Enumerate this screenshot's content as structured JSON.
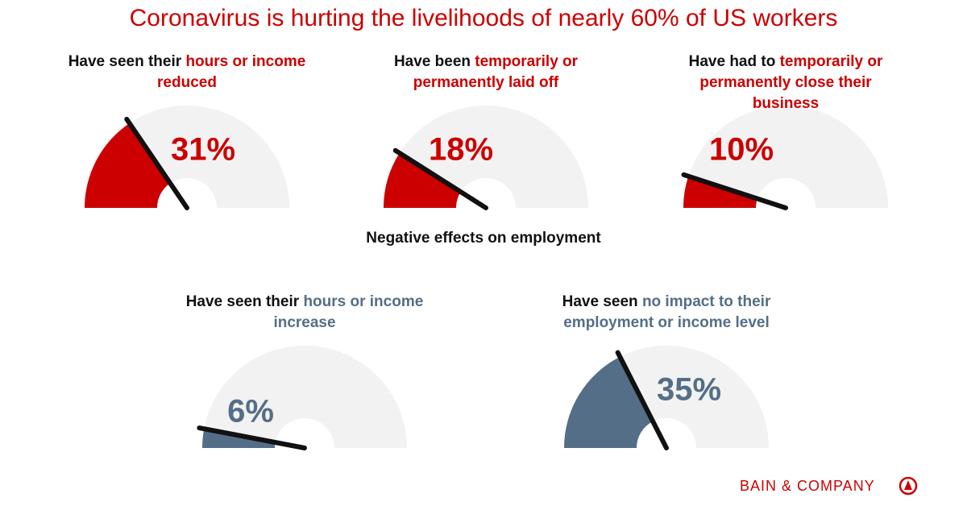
{
  "title": "Coronavirus is hurting the livelihoods of nearly 60% of US workers",
  "section_label": "Negative effects on employment",
  "brand": "BAIN & COMPANY",
  "chart_data": [
    {
      "type": "gauge",
      "label": "Have seen their",
      "label_highlight": "hours or income reduced",
      "value": 31,
      "value_label": "31%",
      "color": "#cc0000",
      "ylim": [
        0,
        100
      ]
    },
    {
      "type": "gauge",
      "label": "Have been",
      "label_highlight": "temporarily or permanently laid off",
      "value": 18,
      "value_label": "18%",
      "color": "#cc0000",
      "ylim": [
        0,
        100
      ]
    },
    {
      "type": "gauge",
      "label": "Have had to",
      "label_highlight": "temporarily or permanently close their business",
      "value": 10,
      "value_label": "10%",
      "color": "#cc0000",
      "ylim": [
        0,
        100
      ]
    },
    {
      "type": "gauge",
      "label": "Have seen their",
      "label_highlight": "hours or income increase",
      "value": 6,
      "value_label": "6%",
      "color": "#546e87",
      "ylim": [
        0,
        100
      ]
    },
    {
      "type": "gauge",
      "label": "Have seen",
      "label_highlight": "no impact to their employment or income level",
      "value": 35,
      "value_label": "35%",
      "color": "#546e87",
      "ylim": [
        0,
        100
      ]
    }
  ]
}
